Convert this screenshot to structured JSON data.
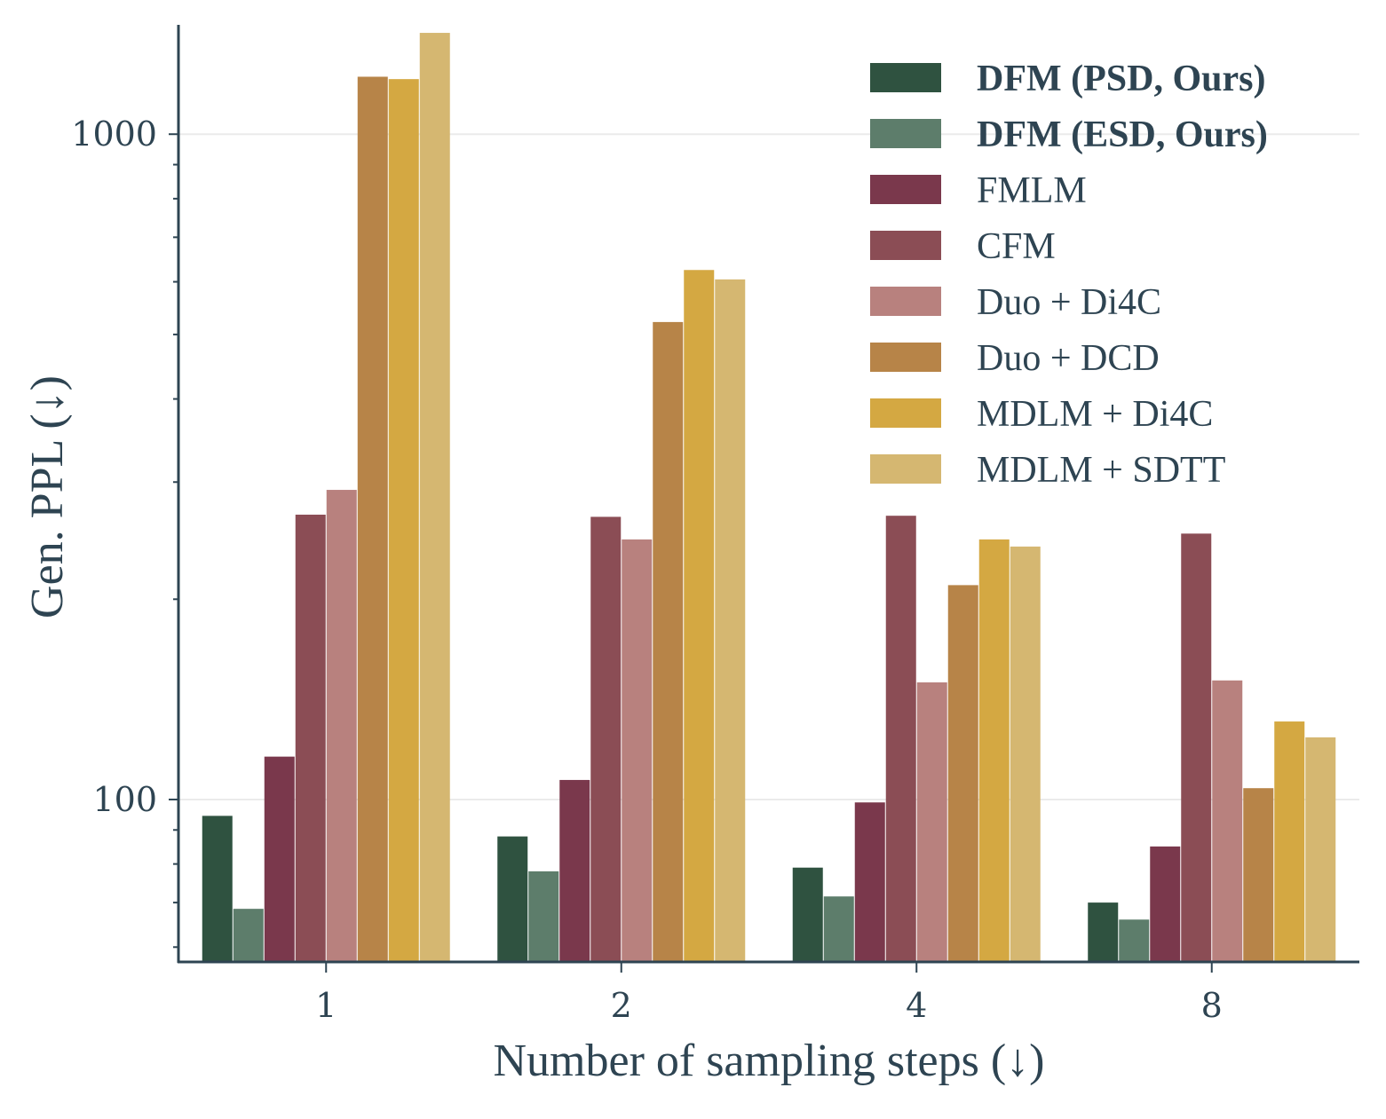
{
  "chart_data": {
    "type": "bar",
    "x_scale": "categorical",
    "y_scale": "log",
    "xlabel": "Number of sampling steps (↓)",
    "ylabel": "Gen. PPL (↓)",
    "categories": [
      "1",
      "2",
      "4",
      "8"
    ],
    "ylim": [
      57,
      1460
    ],
    "y_ticks": [
      100,
      1000
    ],
    "y_tick_labels": [
      "100",
      "1000"
    ],
    "grid": "horizontal at major ticks",
    "legend_position": "top-right",
    "series": [
      {
        "name": "DFM (PSD, Ours)",
        "bold": true,
        "color": "#2f5240",
        "values": [
          94.5,
          88,
          79,
          70
        ]
      },
      {
        "name": "DFM (ESD, Ours)",
        "bold": true,
        "color": "#5d7d6b",
        "values": [
          68.5,
          78,
          71.5,
          66
        ]
      },
      {
        "name": "FMLM",
        "bold": false,
        "color": "#7a384c",
        "values": [
          116,
          107,
          99,
          85
        ]
      },
      {
        "name": "CFM",
        "bold": false,
        "color": "#8b4d55",
        "values": [
          268,
          266,
          267,
          251
        ]
      },
      {
        "name": "Duo + Di4C",
        "bold": false,
        "color": "#b8817e",
        "values": [
          292,
          246,
          150,
          151
        ]
      },
      {
        "name": "Duo + DCD",
        "bold": false,
        "color": "#b78448",
        "values": [
          1220,
          522,
          210,
          104
        ]
      },
      {
        "name": "MDLM + Di4C",
        "bold": false,
        "color": "#d4a842",
        "values": [
          1210,
          625,
          246,
          131
        ]
      },
      {
        "name": "MDLM + SDTT",
        "bold": false,
        "color": "#d5b771",
        "values": [
          1420,
          605,
          240,
          124
        ]
      }
    ]
  }
}
